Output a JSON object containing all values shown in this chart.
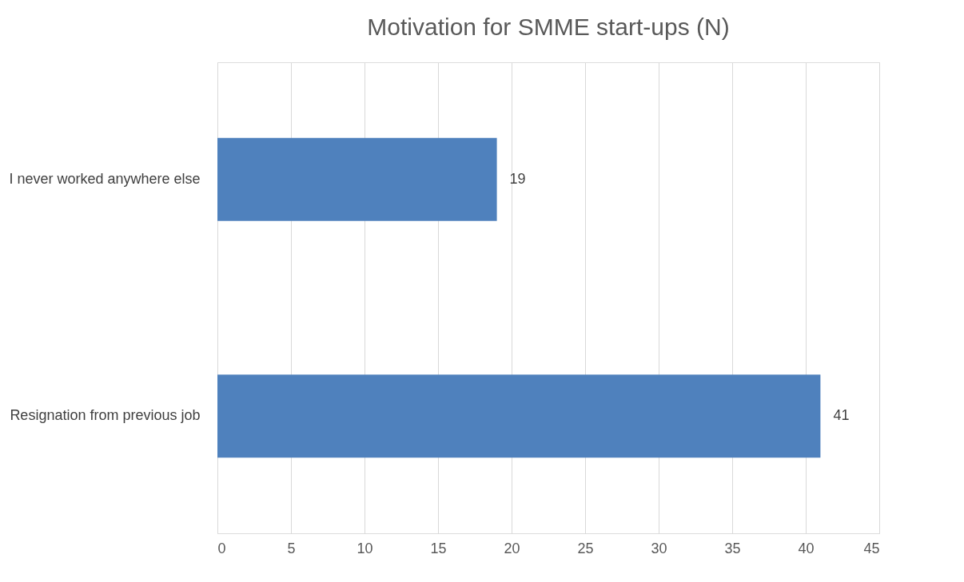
{
  "chart_data": {
    "type": "bar",
    "title": "Motivation for SMME start-ups (N)",
    "orientation": "horizontal",
    "categories": [
      "I never worked anywhere else",
      "Resignation from previous job"
    ],
    "values": [
      19,
      41
    ],
    "color": "#4f81bd",
    "xlim": [
      0,
      45
    ],
    "xticks": [
      0,
      5,
      10,
      15,
      20,
      25,
      30,
      35,
      40,
      45
    ],
    "grid": "x",
    "data_labels": true
  }
}
